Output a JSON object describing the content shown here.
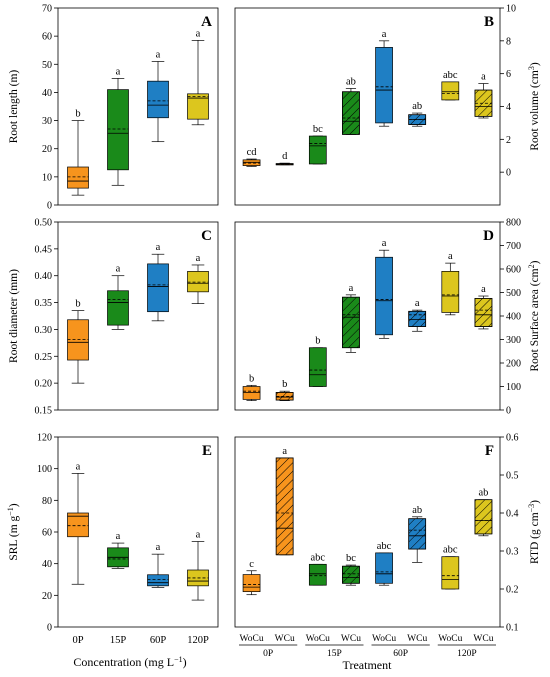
{
  "figure": {
    "left_xlabel": "Concentration (mg L",
    "left_xlabel_sup": "−1",
    "left_xlabel_end": ")",
    "right_xlabel": "Treatment",
    "left_categories": [
      "0P",
      "15P",
      "60P",
      "120P"
    ],
    "right_groups": [
      "0P",
      "15P",
      "60P",
      "120P"
    ],
    "right_subcategories": [
      "WoCu",
      "WCu",
      "WoCu",
      "WCu",
      "WoCu",
      "WCu",
      "WoCu",
      "WCu"
    ],
    "colors": {
      "0P": "#f7941d",
      "15P": "#1a8a1a",
      "60P": "#1f7fc4",
      "120P": "#dcc61e"
    }
  },
  "chart_data": [
    {
      "panel": "A",
      "type": "box",
      "ylabel": "Root length (m)",
      "ylim": [
        0,
        70
      ],
      "ticks": [
        0,
        10,
        20,
        30,
        40,
        50,
        60,
        70
      ],
      "boxes": [
        {
          "cat": "0P",
          "min": 3.5,
          "q1": 6,
          "median": 8.5,
          "mean": 10,
          "q3": 13.5,
          "max": 30,
          "letter": "b"
        },
        {
          "cat": "15P",
          "min": 7,
          "q1": 12.5,
          "median": 25.5,
          "mean": 27,
          "q3": 41,
          "max": 45,
          "letter": "a"
        },
        {
          "cat": "60P",
          "min": 22.5,
          "q1": 31,
          "median": 35.5,
          "mean": 37,
          "q3": 44,
          "max": 51,
          "letter": "a"
        },
        {
          "cat": "120P",
          "min": 28.5,
          "q1": 30.5,
          "median": 38,
          "mean": 38.5,
          "q3": 39.5,
          "max": 58.5,
          "letter": "a"
        }
      ]
    },
    {
      "panel": "B",
      "type": "box",
      "ylabel": "Root volume (cm",
      "ylabel_sup": "3",
      "ylabel_end": ")",
      "ylim": [
        -2,
        10
      ],
      "ticks": [
        0,
        2,
        4,
        6,
        8,
        10
      ],
      "boxes": [
        {
          "cat": "0P",
          "cu": "WoCu",
          "min": 0.35,
          "q1": 0.4,
          "median": 0.6,
          "mean": 0.55,
          "q3": 0.75,
          "max": 0.8,
          "letter": "cd"
        },
        {
          "cat": "0P",
          "cu": "WCu",
          "min": 0.45,
          "q1": 0.48,
          "median": 0.5,
          "mean": 0.5,
          "q3": 0.52,
          "max": 0.55,
          "letter": "d"
        },
        {
          "cat": "15P",
          "cu": "WoCu",
          "min": 0.5,
          "q1": 0.5,
          "median": 1.6,
          "mean": 1.75,
          "q3": 2.2,
          "max": 2.2,
          "letter": "bc"
        },
        {
          "cat": "15P",
          "cu": "WCu",
          "min": 2.3,
          "q1": 2.3,
          "median": 3.1,
          "mean": 3.3,
          "q3": 4.9,
          "max": 5.1,
          "letter": "ab"
        },
        {
          "cat": "60P",
          "cu": "WoCu",
          "min": 2.8,
          "q1": 3.0,
          "median": 5.0,
          "mean": 5.2,
          "q3": 7.6,
          "max": 8.0,
          "letter": "a"
        },
        {
          "cat": "60P",
          "cu": "WCu",
          "min": 2.8,
          "q1": 2.9,
          "median": 3.2,
          "mean": 3.2,
          "q3": 3.5,
          "max": 3.6,
          "letter": "ab"
        },
        {
          "cat": "120P",
          "cu": "WoCu",
          "min": 4.4,
          "q1": 4.4,
          "median": 4.9,
          "mean": 4.8,
          "q3": 5.5,
          "max": 5.5,
          "letter": "abc"
        },
        {
          "cat": "120P",
          "cu": "WCu",
          "min": 3.3,
          "q1": 3.4,
          "median": 4.0,
          "mean": 4.2,
          "q3": 5.0,
          "max": 5.4,
          "letter": "a"
        }
      ]
    },
    {
      "panel": "C",
      "type": "box",
      "ylabel": "Root diameter (mm)",
      "ylim": [
        0.15,
        0.5
      ],
      "ticks": [
        0.15,
        0.2,
        0.25,
        0.3,
        0.35,
        0.4,
        0.45,
        0.5
      ],
      "boxes": [
        {
          "cat": "0P",
          "min": 0.2,
          "q1": 0.243,
          "median": 0.276,
          "mean": 0.281,
          "q3": 0.318,
          "max": 0.335,
          "letter": "b"
        },
        {
          "cat": "15P",
          "min": 0.3,
          "q1": 0.308,
          "median": 0.35,
          "mean": 0.356,
          "q3": 0.372,
          "max": 0.4,
          "letter": "a"
        },
        {
          "cat": "60P",
          "min": 0.316,
          "q1": 0.333,
          "median": 0.38,
          "mean": 0.383,
          "q3": 0.422,
          "max": 0.44,
          "letter": "a"
        },
        {
          "cat": "120P",
          "min": 0.348,
          "q1": 0.37,
          "median": 0.386,
          "mean": 0.388,
          "q3": 0.408,
          "max": 0.42,
          "letter": "a"
        }
      ]
    },
    {
      "panel": "D",
      "type": "box",
      "ylabel": "Root Surface area (cm",
      "ylabel_sup": "2",
      "ylabel_end": ")",
      "ylim": [
        0,
        800
      ],
      "ticks": [
        0,
        100,
        200,
        300,
        400,
        500,
        600,
        700,
        800
      ],
      "boxes": [
        {
          "cat": "0P",
          "cu": "WoCu",
          "min": 40,
          "q1": 45,
          "median": 75,
          "mean": 80,
          "q3": 100,
          "max": 105,
          "letter": "b"
        },
        {
          "cat": "0P",
          "cu": "WCu",
          "min": 40,
          "q1": 42,
          "median": 55,
          "mean": 58,
          "q3": 75,
          "max": 80,
          "letter": "b"
        },
        {
          "cat": "15P",
          "cu": "WoCu",
          "min": 100,
          "q1": 100,
          "median": 150,
          "mean": 170,
          "q3": 265,
          "max": 265,
          "letter": "b"
        },
        {
          "cat": "15P",
          "cu": "WCu",
          "min": 245,
          "q1": 265,
          "median": 395,
          "mean": 405,
          "q3": 480,
          "max": 490,
          "letter": "a"
        },
        {
          "cat": "60P",
          "cu": "WoCu",
          "min": 305,
          "q1": 320,
          "median": 465,
          "mean": 470,
          "q3": 650,
          "max": 680,
          "letter": "a"
        },
        {
          "cat": "60P",
          "cu": "WCu",
          "min": 335,
          "q1": 355,
          "median": 385,
          "mean": 405,
          "q3": 420,
          "max": 425,
          "letter": "a"
        },
        {
          "cat": "120P",
          "cu": "WoCu",
          "min": 405,
          "q1": 415,
          "median": 485,
          "mean": 490,
          "q3": 590,
          "max": 625,
          "letter": "a"
        },
        {
          "cat": "120P",
          "cu": "WCu",
          "min": 345,
          "q1": 355,
          "median": 405,
          "mean": 425,
          "q3": 475,
          "max": 485,
          "letter": "a"
        }
      ]
    },
    {
      "panel": "E",
      "type": "box",
      "ylabel": "SRL (m g",
      "ylabel_sup": "−1",
      "ylabel_end": ")",
      "ylim": [
        0,
        120
      ],
      "ticks": [
        0,
        20,
        40,
        60,
        80,
        100,
        120
      ],
      "boxes": [
        {
          "cat": "0P",
          "min": 27,
          "q1": 57,
          "median": 70,
          "mean": 64,
          "q3": 72,
          "max": 97,
          "letter": "a"
        },
        {
          "cat": "15P",
          "min": 37,
          "q1": 38,
          "median": 44,
          "mean": 43,
          "q3": 50,
          "max": 53,
          "letter": "a"
        },
        {
          "cat": "60P",
          "min": 25,
          "q1": 26,
          "median": 28,
          "mean": 30,
          "q3": 33,
          "max": 46,
          "letter": "a"
        },
        {
          "cat": "120P",
          "min": 17,
          "q1": 26,
          "median": 29,
          "mean": 31,
          "q3": 36,
          "max": 54,
          "letter": "a"
        }
      ]
    },
    {
      "panel": "F",
      "type": "box",
      "ylabel": "RTD (g cm",
      "ylabel_sup": "−3",
      "ylabel_end": ")",
      "ylim": [
        0.1,
        0.6
      ],
      "ticks": [
        0.1,
        0.2,
        0.3,
        0.4,
        0.5,
        0.6
      ],
      "boxes": [
        {
          "cat": "0P",
          "cu": "WoCu",
          "min": 0.185,
          "q1": 0.193,
          "median": 0.205,
          "mean": 0.212,
          "q3": 0.238,
          "max": 0.248,
          "letter": "c"
        },
        {
          "cat": "0P",
          "cu": "WCu",
          "min": 0.29,
          "q1": 0.29,
          "median": 0.36,
          "mean": 0.4,
          "q3": 0.545,
          "max": 0.545,
          "letter": "a"
        },
        {
          "cat": "15P",
          "cu": "WoCu",
          "min": 0.21,
          "q1": 0.21,
          "median": 0.24,
          "mean": 0.235,
          "q3": 0.265,
          "max": 0.265,
          "letter": "abc"
        },
        {
          "cat": "15P",
          "cu": "WCu",
          "min": 0.21,
          "q1": 0.215,
          "median": 0.23,
          "mean": 0.24,
          "q3": 0.26,
          "max": 0.263,
          "letter": "bc"
        },
        {
          "cat": "60P",
          "cu": "WoCu",
          "min": 0.21,
          "q1": 0.215,
          "median": 0.24,
          "mean": 0.245,
          "q3": 0.295,
          "max": 0.295,
          "letter": "abc"
        },
        {
          "cat": "60P",
          "cu": "WCu",
          "min": 0.27,
          "q1": 0.305,
          "median": 0.34,
          "mean": 0.355,
          "q3": 0.385,
          "max": 0.39,
          "letter": "ab"
        },
        {
          "cat": "120P",
          "cu": "WoCu",
          "min": 0.2,
          "q1": 0.2,
          "median": 0.225,
          "mean": 0.235,
          "q3": 0.285,
          "max": 0.285,
          "letter": "abc"
        },
        {
          "cat": "120P",
          "cu": "WCu",
          "min": 0.34,
          "q1": 0.345,
          "median": 0.38,
          "mean": 0.38,
          "q3": 0.435,
          "max": 0.435,
          "letter": "ab"
        }
      ]
    }
  ]
}
